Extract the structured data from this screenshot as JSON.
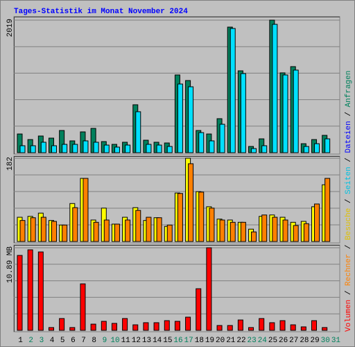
{
  "chart_data": {
    "type": "bar",
    "title": "Tages-Statistik im Monat November 2024",
    "title_color": "#0000ff",
    "categories": [
      1,
      2,
      3,
      4,
      5,
      6,
      7,
      8,
      9,
      10,
      11,
      12,
      13,
      14,
      15,
      16,
      17,
      18,
      19,
      20,
      21,
      22,
      23,
      24,
      25,
      26,
      27,
      28,
      29,
      30,
      31
    ],
    "weekend_days": [
      2,
      3,
      9,
      10,
      16,
      17,
      23,
      24,
      30,
      31
    ],
    "weekday_color": "#000000",
    "weekend_color": "#00805c",
    "panels": [
      {
        "ylim": [
          0,
          2019
        ],
        "yticks": [
          2019
        ],
        "series": [
          {
            "color": "#00805c",
            "values": [
              285,
              200,
              254,
              222,
              338,
              180,
              317,
              370,
              169,
              127,
              159,
              730,
              190,
              159,
              148,
              1184,
              1099,
              338,
              285,
              518,
              1913,
              1247,
              95,
              211,
              2019,
              1216,
              1311,
              137,
              200,
              264,
              0
            ]
          },
          {
            "color": "#00e0ff",
            "values": [
              106,
              106,
              159,
              106,
              127,
              127,
              180,
              159,
              116,
              85,
              116,
              624,
              127,
              116,
              95,
              1046,
              1004,
              306,
              180,
              433,
              1892,
              1205,
              63,
              106,
              1955,
              1184,
              1258,
              95,
              137,
              211,
              0
            ]
          }
        ]
      },
      {
        "ylim": [
          0,
          182
        ],
        "yticks": [
          182
        ],
        "series": [
          {
            "color": "#ffff00",
            "values": [
              53,
              55,
              62,
              46,
              36,
              83,
              138,
              47,
              73,
              38,
              53,
              74,
              46,
              52,
              33,
              106,
              182,
              109,
              76,
              49,
              47,
              42,
              27,
              55,
              58,
              53,
              42,
              44,
              76,
              124,
              0
            ]
          },
          {
            "color": "#ff8000",
            "values": [
              46,
              52,
              53,
              44,
              36,
              74,
              138,
              42,
              47,
              38,
              47,
              68,
              53,
              52,
              36,
              105,
              170,
              108,
              73,
              47,
              42,
              42,
              21,
              58,
              53,
              47,
              35,
              39,
              82,
              138,
              0
            ]
          }
        ]
      },
      {
        "ylim": [
          0,
          10.89
        ],
        "yticks": [
          {
            "value": 10.89,
            "label": "10.89 MB"
          }
        ],
        "series": [
          {
            "color": "#ff0000",
            "values": [
              9.88,
              10.62,
              10.34,
              0.37,
              1.56,
              0.37,
              6.13,
              0.82,
              1.19,
              0.92,
              1.56,
              0.73,
              1.01,
              1.01,
              1.28,
              1.19,
              1.74,
              5.49,
              10.89,
              0.64,
              0.64,
              1.37,
              0.37,
              1.56,
              1.01,
              1.28,
              0.73,
              0.46,
              1.28,
              0.37,
              0
            ]
          }
        ]
      }
    ],
    "legend_separator": " / ",
    "legend": [
      {
        "name": "Volumen",
        "color": "#ff0000"
      },
      {
        "name": "Rechner",
        "color": "#ff8000"
      },
      {
        "name": "Besuche",
        "color": "#e0c000"
      },
      {
        "name": "Seiten",
        "color": "#00c0e0"
      },
      {
        "name": "Dateien",
        "color": "#0000ff"
      },
      {
        "name": "Anfragen",
        "color": "#00805c"
      }
    ]
  }
}
